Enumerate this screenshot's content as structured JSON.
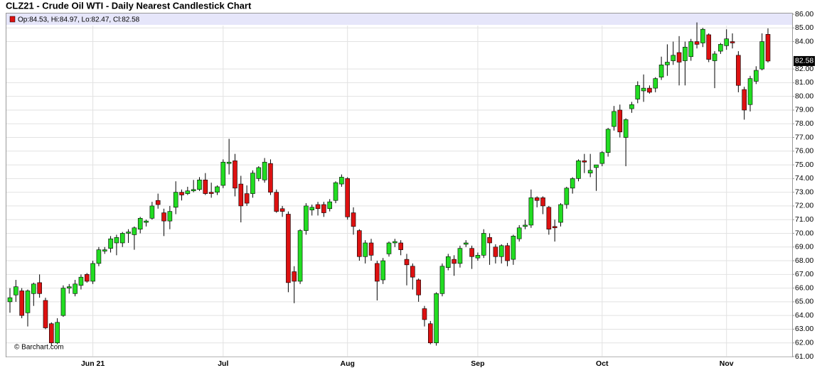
{
  "chart_data": {
    "type": "candlestick",
    "title": "CLZ21 - Crude Oil WTI - Daily Nearest Candlestick Chart",
    "legend": "Op:84.53, Hi:84.97, Lo:82.47, Cl:82.58",
    "last_price": 82.58,
    "credit": "© Barchart.com",
    "up_color": "#22dd22",
    "down_color": "#dd1111",
    "grid": true,
    "ylim": [
      61,
      86
    ],
    "yticks": [
      {
        "value": 61,
        "label": "61.00"
      },
      {
        "value": 62,
        "label": "62.00"
      },
      {
        "value": 63,
        "label": "63.00"
      },
      {
        "value": 64,
        "label": "64.00"
      },
      {
        "value": 65,
        "label": "65.00"
      },
      {
        "value": 66,
        "label": "66.00"
      },
      {
        "value": 67,
        "label": "67.00"
      },
      {
        "value": 68,
        "label": "68.00"
      },
      {
        "value": 69,
        "label": "69.00"
      },
      {
        "value": 70,
        "label": "70.00"
      },
      {
        "value": 71,
        "label": "71.00"
      },
      {
        "value": 72,
        "label": "72.00"
      },
      {
        "value": 73,
        "label": "73.00"
      },
      {
        "value": 74,
        "label": "74.00"
      },
      {
        "value": 75,
        "label": "75.00"
      },
      {
        "value": 76,
        "label": "76.00"
      },
      {
        "value": 77,
        "label": "77.00"
      },
      {
        "value": 78,
        "label": "78.00"
      },
      {
        "value": 79,
        "label": "79.00"
      },
      {
        "value": 80,
        "label": "80.00"
      },
      {
        "value": 81,
        "label": "81.00"
      },
      {
        "value": 82,
        "label": "82.00"
      },
      {
        "value": 84,
        "label": "84.00"
      },
      {
        "value": 85,
        "label": "85.00"
      },
      {
        "value": 86,
        "label": "86.00"
      }
    ],
    "categories": [
      null,
      null,
      null,
      null,
      null,
      null,
      null,
      null,
      null,
      null,
      null,
      null,
      null,
      null,
      "Jun 21",
      null,
      null,
      null,
      null,
      null,
      null,
      null,
      null,
      null,
      null,
      null,
      null,
      null,
      null,
      null,
      null,
      null,
      null,
      null,
      null,
      null,
      "Jul",
      null,
      null,
      null,
      null,
      null,
      null,
      null,
      null,
      null,
      null,
      null,
      null,
      null,
      null,
      null,
      null,
      null,
      null,
      null,
      null,
      "Aug",
      null,
      null,
      null,
      null,
      null,
      null,
      null,
      null,
      null,
      null,
      null,
      null,
      null,
      null,
      null,
      null,
      null,
      null,
      null,
      null,
      null,
      "Sep",
      null,
      null,
      null,
      null,
      null,
      null,
      null,
      null,
      null,
      null,
      null,
      null,
      null,
      null,
      null,
      null,
      null,
      null,
      null,
      null,
      "Oct",
      null,
      null,
      null,
      null,
      null,
      null,
      null,
      null,
      null,
      null,
      null,
      null,
      null,
      null,
      null,
      null,
      null,
      null,
      null,
      null,
      "Nov",
      null,
      null,
      null,
      null,
      null,
      null,
      null
    ],
    "open": [
      65.0,
      65.5,
      65.8,
      64.2,
      65.6,
      66.4,
      65.1,
      63.4,
      62.0,
      64.0,
      66.0,
      65.6,
      66.2,
      67.0,
      66.5,
      67.8,
      68.7,
      68.9,
      69.3,
      69.3,
      70.0,
      69.9,
      70.3,
      70.8,
      71.1,
      72.4,
      71.5,
      70.9,
      71.9,
      73.0,
      72.9,
      73.1,
      73.2,
      73.9,
      73.0,
      73.0,
      73.5,
      75.1,
      75.3,
      73.6,
      72.9,
      72.9,
      74.0,
      73.9,
      75.1,
      73.0,
      71.8,
      71.4,
      67.2,
      66.5,
      70.2,
      71.7,
      72.1,
      72.1,
      71.8,
      72.4,
      73.6,
      74.0,
      71.5,
      70.2,
      68.3,
      69.3,
      67.8,
      66.6,
      68.5,
      69.3,
      69.3,
      68.1,
      67.6,
      66.6,
      64.5,
      63.4,
      62.0,
      65.6,
      67.5,
      68.1,
      67.8,
      69.2,
      68.9,
      68.2,
      68.4,
      69.7,
      69.0,
      68.3,
      69.1,
      68.1,
      69.6,
      70.5,
      70.6,
      72.6,
      72.6,
      71.9,
      70.5,
      70.8,
      72.1,
      73.3,
      74.0,
      75.3,
      74.4,
      74.8,
      75.1,
      75.9,
      77.8,
      79.0,
      77.0,
      79.1,
      79.8,
      80.4,
      80.6,
      80.6,
      81.4,
      82.3,
      82.6,
      83.2,
      82.6,
      82.9,
      84.0,
      83.9,
      84.5,
      82.6,
      83.3,
      83.7,
      84.0,
      83.0,
      80.5,
      79.4,
      81.1,
      82.0,
      84.53
    ],
    "high": [
      66.0,
      66.6,
      66.0,
      65.9,
      66.4,
      67.0,
      65.3,
      63.5,
      63.8,
      66.2,
      66.3,
      66.6,
      67.0,
      67.1,
      68.0,
      69.0,
      69.0,
      69.8,
      69.9,
      70.1,
      70.3,
      70.5,
      71.2,
      71.0,
      72.3,
      72.9,
      71.8,
      72.0,
      73.8,
      73.2,
      73.4,
      73.9,
      74.1,
      74.4,
      73.7,
      73.5,
      75.4,
      76.9,
      75.8,
      74.2,
      73.5,
      74.6,
      74.9,
      75.5,
      75.4,
      73.2,
      72.0,
      71.6,
      67.6,
      70.3,
      72.2,
      72.1,
      72.3,
      72.3,
      72.5,
      73.8,
      74.3,
      74.1,
      71.9,
      70.3,
      69.5,
      69.6,
      68.0,
      68.2,
      69.4,
      69.6,
      69.5,
      68.5,
      67.8,
      66.7,
      64.7,
      63.6,
      65.7,
      67.8,
      68.5,
      68.4,
      69.1,
      69.5,
      69.1,
      68.6,
      70.3,
      70.0,
      69.2,
      69.2,
      69.3,
      69.9,
      70.6,
      71.0,
      73.2,
      72.7,
      72.7,
      72.0,
      71.0,
      72.2,
      73.4,
      74.1,
      75.4,
      75.8,
      75.8,
      75.0,
      76.0,
      77.7,
      79.3,
      79.4,
      78.4,
      79.6,
      81.1,
      81.6,
      80.8,
      81.4,
      82.9,
      83.8,
      84.0,
      84.4,
      84.0,
      84.2,
      85.4,
      85.0,
      84.6,
      83.3,
      83.9,
      84.9,
      84.6,
      83.3,
      80.7,
      81.5,
      82.2,
      84.6,
      84.97
    ],
    "low": [
      64.2,
      65.0,
      63.8,
      63.2,
      64.7,
      65.3,
      63.0,
      61.8,
      61.9,
      63.9,
      65.6,
      65.4,
      65.9,
      66.4,
      66.3,
      67.6,
      68.5,
      68.6,
      68.4,
      69.0,
      69.3,
      68.8,
      70.0,
      70.5,
      71.0,
      71.8,
      69.8,
      70.3,
      71.4,
      72.4,
      72.8,
      73.0,
      73.1,
      72.8,
      72.6,
      72.8,
      73.3,
      74.3,
      72.7,
      70.8,
      72.0,
      72.6,
      73.8,
      73.7,
      72.8,
      71.5,
      71.2,
      65.7,
      64.9,
      66.3,
      69.9,
      71.3,
      71.3,
      71.2,
      71.6,
      72.2,
      73.4,
      71.0,
      69.9,
      68.0,
      67.8,
      68.0,
      65.1,
      66.3,
      68.3,
      69.0,
      68.4,
      66.2,
      65.9,
      65.0,
      63.2,
      61.9,
      61.8,
      65.4,
      67.3,
      66.9,
      67.5,
      69.0,
      67.4,
      68.0,
      68.2,
      67.7,
      67.8,
      67.8,
      67.6,
      67.7,
      69.4,
      70.3,
      70.4,
      71.9,
      71.4,
      69.9,
      69.4,
      70.5,
      71.8,
      72.9,
      73.8,
      74.4,
      74.1,
      73.1,
      74.9,
      75.6,
      77.5,
      77.0,
      74.9,
      78.8,
      79.5,
      79.6,
      80.2,
      80.3,
      81.2,
      81.5,
      82.3,
      80.8,
      80.8,
      82.6,
      83.5,
      83.6,
      82.5,
      80.6,
      83.1,
      83.4,
      83.5,
      80.3,
      78.3,
      78.9,
      80.9,
      81.9,
      82.47
    ],
    "close": [
      65.3,
      66.1,
      64.0,
      65.8,
      66.3,
      65.6,
      63.1,
      62.0,
      63.5,
      66.0,
      66.1,
      66.3,
      66.8,
      66.5,
      67.8,
      68.8,
      68.8,
      69.6,
      69.7,
      70.0,
      70.1,
      70.4,
      71.1,
      70.9,
      72.0,
      72.1,
      70.9,
      71.6,
      73.0,
      72.8,
      73.1,
      73.2,
      73.9,
      72.9,
      72.9,
      73.4,
      75.2,
      75.2,
      73.3,
      72.0,
      72.2,
      74.4,
      74.8,
      75.2,
      73.0,
      71.6,
      71.6,
      66.4,
      66.5,
      70.2,
      72.0,
      71.9,
      71.8,
      71.5,
      72.3,
      73.7,
      74.1,
      71.2,
      70.5,
      68.3,
      69.3,
      68.4,
      66.5,
      68.0,
      69.3,
      69.4,
      68.8,
      67.7,
      66.8,
      65.5,
      63.7,
      62.0,
      65.6,
      67.6,
      68.3,
      67.8,
      68.9,
      69.3,
      68.3,
      68.4,
      70.0,
      69.3,
      68.3,
      69.1,
      68.0,
      69.8,
      70.4,
      70.6,
      72.6,
      72.4,
      72.0,
      70.3,
      70.4,
      72.1,
      73.3,
      74.0,
      75.3,
      75.2,
      74.6,
      75.0,
      75.9,
      77.6,
      78.9,
      77.4,
      78.3,
      79.4,
      80.8,
      80.6,
      80.3,
      81.3,
      82.3,
      82.5,
      83.0,
      82.5,
      83.6,
      84.0,
      83.8,
      84.9,
      82.7,
      83.1,
      83.8,
      84.2,
      83.9,
      80.8,
      79.0,
      81.3,
      81.9,
      84.0,
      82.58
    ]
  }
}
